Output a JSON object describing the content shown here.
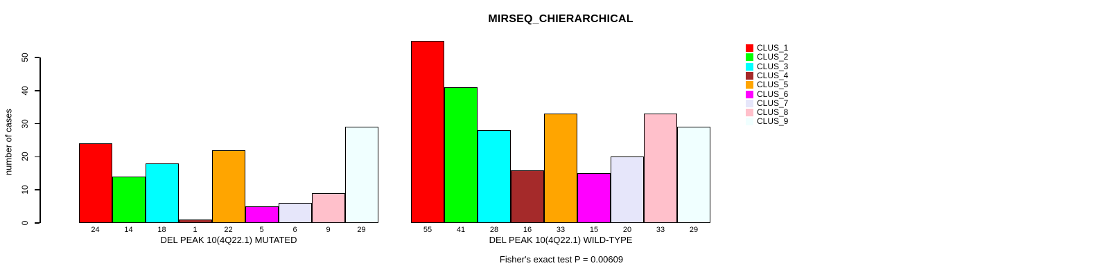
{
  "chart_data": {
    "type": "bar",
    "title": "MIRSEQ_CHIERARCHICAL",
    "ylabel": "number of cases",
    "ylim": [
      0,
      50
    ],
    "yticks": [
      0,
      10,
      20,
      30,
      40,
      50
    ],
    "grid": false,
    "footnote": "Fisher's exact test P = 0.00609",
    "colors": [
      "#FF0000",
      "#00FF00",
      "#00FFFF",
      "#A52A2A",
      "#FFA500",
      "#FF00FF",
      "#E6E6FA",
      "#FFC0CB",
      "#F0FFFF"
    ],
    "groups": [
      {
        "xlabel": "DEL PEAK 10(4Q22.1) MUTATED",
        "values": [
          24,
          14,
          18,
          1,
          22,
          5,
          6,
          9,
          29
        ]
      },
      {
        "xlabel": "DEL PEAK 10(4Q22.1) WILD-TYPE",
        "values": [
          55,
          41,
          28,
          16,
          33,
          15,
          20,
          33,
          29
        ]
      }
    ],
    "legend": {
      "position": "right",
      "entries": [
        "CLUS_1",
        "CLUS_2",
        "CLUS_3",
        "CLUS_4",
        "CLUS_5",
        "CLUS_6",
        "CLUS_7",
        "CLUS_8",
        "CLUS_9"
      ]
    }
  }
}
